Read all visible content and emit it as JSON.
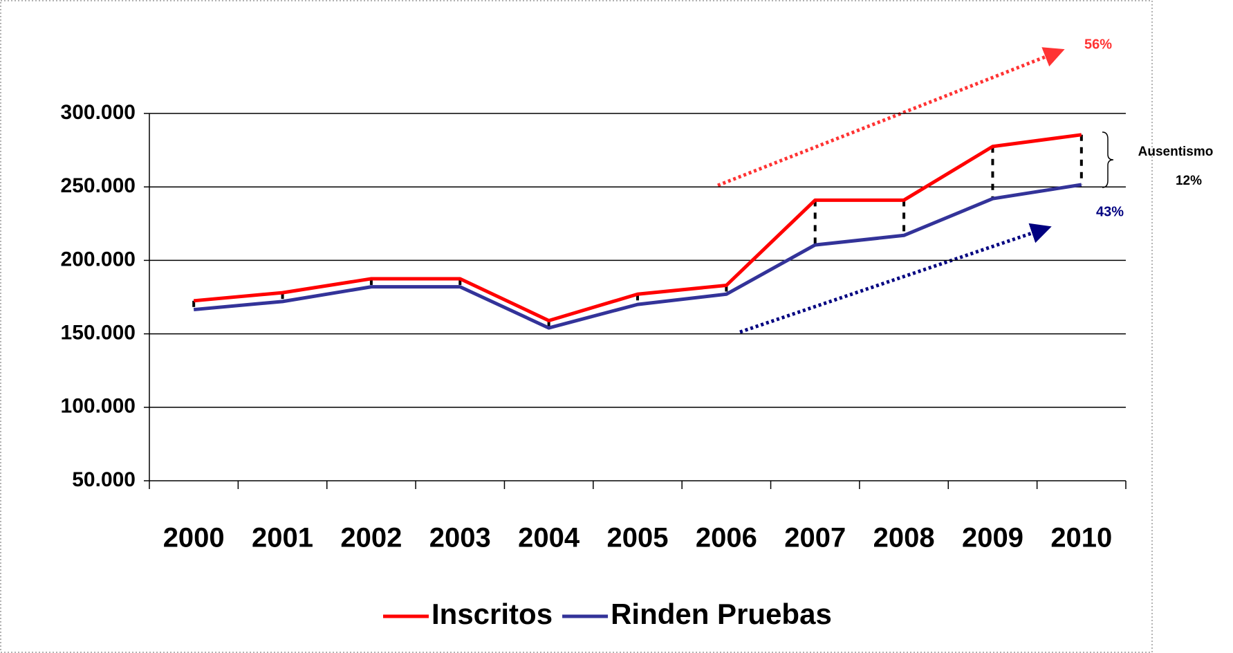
{
  "chart_data": {
    "type": "line",
    "categories": [
      "2000",
      "2001",
      "2002",
      "2003",
      "2004",
      "2005",
      "2006",
      "2007",
      "2008",
      "2009",
      "2010"
    ],
    "series": [
      {
        "name": "Inscritos",
        "color": "#ff0000",
        "values": [
          172500,
          178000,
          187500,
          187500,
          159000,
          177000,
          183000,
          241000,
          241000,
          277500,
          285500
        ]
      },
      {
        "name": "Rinden Pruebas",
        "color": "#333399",
        "values": [
          166500,
          172000,
          182000,
          182000,
          154000,
          170000,
          177000,
          210500,
          217000,
          242000,
          251500
        ]
      }
    ],
    "ylim": [
      50000,
      300000
    ],
    "yticks": [
      {
        "value": 50000,
        "label": "50.000"
      },
      {
        "value": 100000,
        "label": "100.000"
      },
      {
        "value": 150000,
        "label": "150.000"
      },
      {
        "value": 200000,
        "label": "200.000"
      },
      {
        "value": 250000,
        "label": "250.000"
      },
      {
        "value": 300000,
        "label": "300.000"
      }
    ],
    "grid": true,
    "legend": "bottom",
    "annotations": [
      {
        "text": "56%",
        "color": "#ff3333"
      },
      {
        "text": "43%",
        "color": "#000080"
      },
      {
        "text": "Ausentismo",
        "color": "#000000"
      },
      {
        "text": "12%",
        "color": "#000000"
      }
    ]
  }
}
